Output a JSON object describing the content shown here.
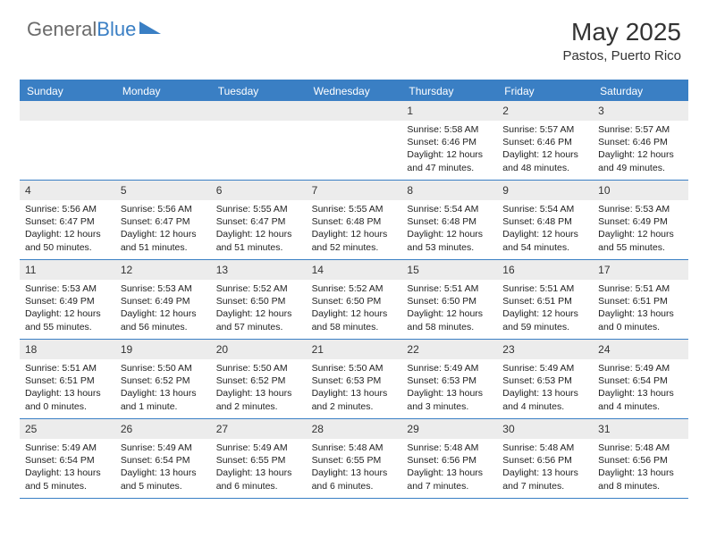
{
  "brand": {
    "part1": "General",
    "part2": "Blue"
  },
  "title": "May 2025",
  "location": "Pastos, Puerto Rico",
  "colors": {
    "accent": "#3a7fc4",
    "gray_text": "#6b6b6b",
    "cell_header_bg": "#ececec",
    "background": "#ffffff"
  },
  "day_names": [
    "Sunday",
    "Monday",
    "Tuesday",
    "Wednesday",
    "Thursday",
    "Friday",
    "Saturday"
  ],
  "weeks": [
    [
      {
        "blank": true
      },
      {
        "blank": true
      },
      {
        "blank": true
      },
      {
        "blank": true
      },
      {
        "d": "1",
        "sr": "5:58 AM",
        "ss": "6:46 PM",
        "dl": "12 hours and 47 minutes."
      },
      {
        "d": "2",
        "sr": "5:57 AM",
        "ss": "6:46 PM",
        "dl": "12 hours and 48 minutes."
      },
      {
        "d": "3",
        "sr": "5:57 AM",
        "ss": "6:46 PM",
        "dl": "12 hours and 49 minutes."
      }
    ],
    [
      {
        "d": "4",
        "sr": "5:56 AM",
        "ss": "6:47 PM",
        "dl": "12 hours and 50 minutes."
      },
      {
        "d": "5",
        "sr": "5:56 AM",
        "ss": "6:47 PM",
        "dl": "12 hours and 51 minutes."
      },
      {
        "d": "6",
        "sr": "5:55 AM",
        "ss": "6:47 PM",
        "dl": "12 hours and 51 minutes."
      },
      {
        "d": "7",
        "sr": "5:55 AM",
        "ss": "6:48 PM",
        "dl": "12 hours and 52 minutes."
      },
      {
        "d": "8",
        "sr": "5:54 AM",
        "ss": "6:48 PM",
        "dl": "12 hours and 53 minutes."
      },
      {
        "d": "9",
        "sr": "5:54 AM",
        "ss": "6:48 PM",
        "dl": "12 hours and 54 minutes."
      },
      {
        "d": "10",
        "sr": "5:53 AM",
        "ss": "6:49 PM",
        "dl": "12 hours and 55 minutes."
      }
    ],
    [
      {
        "d": "11",
        "sr": "5:53 AM",
        "ss": "6:49 PM",
        "dl": "12 hours and 55 minutes."
      },
      {
        "d": "12",
        "sr": "5:53 AM",
        "ss": "6:49 PM",
        "dl": "12 hours and 56 minutes."
      },
      {
        "d": "13",
        "sr": "5:52 AM",
        "ss": "6:50 PM",
        "dl": "12 hours and 57 minutes."
      },
      {
        "d": "14",
        "sr": "5:52 AM",
        "ss": "6:50 PM",
        "dl": "12 hours and 58 minutes."
      },
      {
        "d": "15",
        "sr": "5:51 AM",
        "ss": "6:50 PM",
        "dl": "12 hours and 58 minutes."
      },
      {
        "d": "16",
        "sr": "5:51 AM",
        "ss": "6:51 PM",
        "dl": "12 hours and 59 minutes."
      },
      {
        "d": "17",
        "sr": "5:51 AM",
        "ss": "6:51 PM",
        "dl": "13 hours and 0 minutes."
      }
    ],
    [
      {
        "d": "18",
        "sr": "5:51 AM",
        "ss": "6:51 PM",
        "dl": "13 hours and 0 minutes."
      },
      {
        "d": "19",
        "sr": "5:50 AM",
        "ss": "6:52 PM",
        "dl": "13 hours and 1 minute."
      },
      {
        "d": "20",
        "sr": "5:50 AM",
        "ss": "6:52 PM",
        "dl": "13 hours and 2 minutes."
      },
      {
        "d": "21",
        "sr": "5:50 AM",
        "ss": "6:53 PM",
        "dl": "13 hours and 2 minutes."
      },
      {
        "d": "22",
        "sr": "5:49 AM",
        "ss": "6:53 PM",
        "dl": "13 hours and 3 minutes."
      },
      {
        "d": "23",
        "sr": "5:49 AM",
        "ss": "6:53 PM",
        "dl": "13 hours and 4 minutes."
      },
      {
        "d": "24",
        "sr": "5:49 AM",
        "ss": "6:54 PM",
        "dl": "13 hours and 4 minutes."
      }
    ],
    [
      {
        "d": "25",
        "sr": "5:49 AM",
        "ss": "6:54 PM",
        "dl": "13 hours and 5 minutes."
      },
      {
        "d": "26",
        "sr": "5:49 AM",
        "ss": "6:54 PM",
        "dl": "13 hours and 5 minutes."
      },
      {
        "d": "27",
        "sr": "5:49 AM",
        "ss": "6:55 PM",
        "dl": "13 hours and 6 minutes."
      },
      {
        "d": "28",
        "sr": "5:48 AM",
        "ss": "6:55 PM",
        "dl": "13 hours and 6 minutes."
      },
      {
        "d": "29",
        "sr": "5:48 AM",
        "ss": "6:56 PM",
        "dl": "13 hours and 7 minutes."
      },
      {
        "d": "30",
        "sr": "5:48 AM",
        "ss": "6:56 PM",
        "dl": "13 hours and 7 minutes."
      },
      {
        "d": "31",
        "sr": "5:48 AM",
        "ss": "6:56 PM",
        "dl": "13 hours and 8 minutes."
      }
    ]
  ],
  "labels": {
    "sunrise": "Sunrise: ",
    "sunset": "Sunset: ",
    "daylight": "Daylight: "
  }
}
